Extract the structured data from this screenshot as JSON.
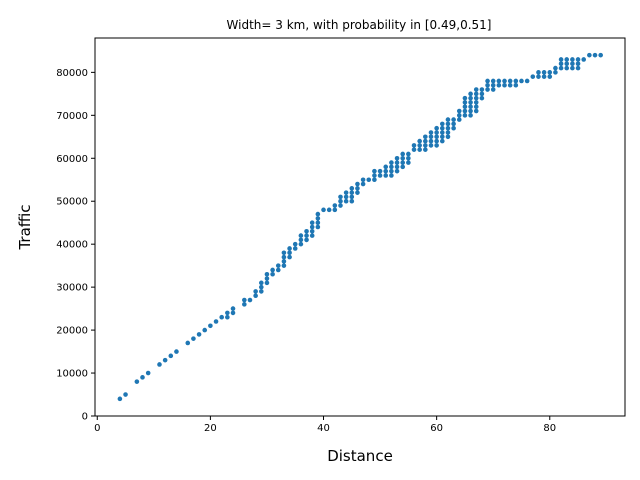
{
  "chart_data": {
    "type": "scatter",
    "title": "Width= 3 km, with probability in [0.49,0.51]",
    "xlabel": "Distance",
    "ylabel": "Traffic",
    "xlim": [
      -0.4,
      93.3
    ],
    "ylim": [
      0,
      88000
    ],
    "xticks": [
      0,
      20,
      40,
      60,
      80
    ],
    "xtick_labels": [
      "0",
      "20",
      "40",
      "60",
      "80"
    ],
    "yticks": [
      0,
      10000,
      20000,
      30000,
      40000,
      50000,
      60000,
      70000,
      80000
    ],
    "ytick_labels": [
      "0",
      "10000",
      "20000",
      "30000",
      "40000",
      "50000",
      "60000",
      "70000",
      "80000"
    ],
    "grid": false,
    "color": "#1f77b4",
    "points": [
      [
        4,
        4000
      ],
      [
        5,
        5000
      ],
      [
        7,
        8000
      ],
      [
        8,
        9000
      ],
      [
        9,
        10000
      ],
      [
        11,
        12000
      ],
      [
        12,
        13000
      ],
      [
        13,
        14000
      ],
      [
        14,
        15000
      ],
      [
        16,
        17000
      ],
      [
        17,
        18000
      ],
      [
        18,
        19000
      ],
      [
        19,
        20000
      ],
      [
        20,
        21000
      ],
      [
        21,
        22000
      ],
      [
        22,
        23000
      ],
      [
        23,
        23000
      ],
      [
        23,
        24000
      ],
      [
        24,
        24000
      ],
      [
        24,
        25000
      ],
      [
        26,
        26000
      ],
      [
        26,
        27000
      ],
      [
        27,
        27000
      ],
      [
        28,
        28000
      ],
      [
        28,
        29000
      ],
      [
        29,
        29000
      ],
      [
        29,
        30000
      ],
      [
        29,
        31000
      ],
      [
        30,
        31000
      ],
      [
        30,
        32000
      ],
      [
        30,
        33000
      ],
      [
        31,
        33000
      ],
      [
        31,
        34000
      ],
      [
        32,
        34000
      ],
      [
        32,
        35000
      ],
      [
        33,
        35000
      ],
      [
        33,
        36000
      ],
      [
        33,
        37000
      ],
      [
        33,
        38000
      ],
      [
        34,
        37000
      ],
      [
        34,
        38000
      ],
      [
        34,
        39000
      ],
      [
        35,
        39000
      ],
      [
        35,
        40000
      ],
      [
        36,
        40000
      ],
      [
        36,
        41000
      ],
      [
        36,
        42000
      ],
      [
        37,
        41000
      ],
      [
        37,
        42000
      ],
      [
        37,
        43000
      ],
      [
        38,
        42000
      ],
      [
        38,
        43000
      ],
      [
        38,
        44000
      ],
      [
        38,
        45000
      ],
      [
        39,
        44000
      ],
      [
        39,
        45000
      ],
      [
        39,
        46000
      ],
      [
        39,
        47000
      ],
      [
        40,
        48000
      ],
      [
        41,
        48000
      ],
      [
        42,
        48000
      ],
      [
        42,
        49000
      ],
      [
        43,
        49000
      ],
      [
        43,
        50000
      ],
      [
        43,
        51000
      ],
      [
        44,
        50000
      ],
      [
        44,
        51000
      ],
      [
        44,
        52000
      ],
      [
        45,
        50000
      ],
      [
        45,
        51000
      ],
      [
        45,
        52000
      ],
      [
        45,
        53000
      ],
      [
        46,
        52000
      ],
      [
        46,
        53000
      ],
      [
        46,
        54000
      ],
      [
        47,
        54000
      ],
      [
        47,
        55000
      ],
      [
        48,
        55000
      ],
      [
        49,
        55000
      ],
      [
        49,
        56000
      ],
      [
        49,
        57000
      ],
      [
        50,
        56000
      ],
      [
        50,
        57000
      ],
      [
        51,
        56000
      ],
      [
        51,
        57000
      ],
      [
        51,
        58000
      ],
      [
        52,
        56000
      ],
      [
        52,
        57000
      ],
      [
        52,
        58000
      ],
      [
        52,
        59000
      ],
      [
        53,
        57000
      ],
      [
        53,
        58000
      ],
      [
        53,
        59000
      ],
      [
        53,
        60000
      ],
      [
        54,
        58000
      ],
      [
        54,
        59000
      ],
      [
        54,
        60000
      ],
      [
        54,
        61000
      ],
      [
        55,
        59000
      ],
      [
        55,
        60000
      ],
      [
        55,
        61000
      ],
      [
        56,
        62000
      ],
      [
        56,
        63000
      ],
      [
        57,
        62000
      ],
      [
        57,
        63000
      ],
      [
        57,
        64000
      ],
      [
        58,
        62000
      ],
      [
        58,
        63000
      ],
      [
        58,
        64000
      ],
      [
        58,
        65000
      ],
      [
        59,
        63000
      ],
      [
        59,
        64000
      ],
      [
        59,
        65000
      ],
      [
        59,
        66000
      ],
      [
        60,
        63000
      ],
      [
        60,
        64000
      ],
      [
        60,
        65000
      ],
      [
        60,
        66000
      ],
      [
        60,
        67000
      ],
      [
        61,
        64000
      ],
      [
        61,
        65000
      ],
      [
        61,
        66000
      ],
      [
        61,
        67000
      ],
      [
        61,
        68000
      ],
      [
        62,
        65000
      ],
      [
        62,
        66000
      ],
      [
        62,
        67000
      ],
      [
        62,
        68000
      ],
      [
        62,
        69000
      ],
      [
        63,
        67000
      ],
      [
        63,
        68000
      ],
      [
        63,
        69000
      ],
      [
        64,
        69000
      ],
      [
        64,
        70000
      ],
      [
        64,
        71000
      ],
      [
        65,
        70000
      ],
      [
        65,
        71000
      ],
      [
        65,
        72000
      ],
      [
        65,
        73000
      ],
      [
        65,
        74000
      ],
      [
        66,
        70000
      ],
      [
        66,
        71000
      ],
      [
        66,
        72000
      ],
      [
        66,
        73000
      ],
      [
        66,
        74000
      ],
      [
        66,
        75000
      ],
      [
        67,
        71000
      ],
      [
        67,
        72000
      ],
      [
        67,
        73000
      ],
      [
        67,
        74000
      ],
      [
        67,
        75000
      ],
      [
        67,
        76000
      ],
      [
        68,
        74000
      ],
      [
        68,
        75000
      ],
      [
        68,
        76000
      ],
      [
        69,
        76000
      ],
      [
        69,
        77000
      ],
      [
        69,
        78000
      ],
      [
        70,
        76000
      ],
      [
        70,
        77000
      ],
      [
        70,
        78000
      ],
      [
        71,
        77000
      ],
      [
        71,
        78000
      ],
      [
        72,
        77000
      ],
      [
        72,
        78000
      ],
      [
        73,
        77000
      ],
      [
        73,
        78000
      ],
      [
        74,
        77000
      ],
      [
        74,
        78000
      ],
      [
        75,
        78000
      ],
      [
        76,
        78000
      ],
      [
        77,
        79000
      ],
      [
        78,
        79000
      ],
      [
        78,
        80000
      ],
      [
        79,
        79000
      ],
      [
        79,
        80000
      ],
      [
        80,
        79000
      ],
      [
        80,
        80000
      ],
      [
        81,
        80000
      ],
      [
        81,
        81000
      ],
      [
        82,
        81000
      ],
      [
        82,
        82000
      ],
      [
        82,
        83000
      ],
      [
        83,
        81000
      ],
      [
        83,
        82000
      ],
      [
        83,
        83000
      ],
      [
        84,
        81000
      ],
      [
        84,
        82000
      ],
      [
        84,
        83000
      ],
      [
        85,
        81000
      ],
      [
        85,
        82000
      ],
      [
        85,
        83000
      ],
      [
        86,
        83000
      ],
      [
        87,
        84000
      ],
      [
        88,
        84000
      ],
      [
        89,
        84000
      ]
    ]
  }
}
